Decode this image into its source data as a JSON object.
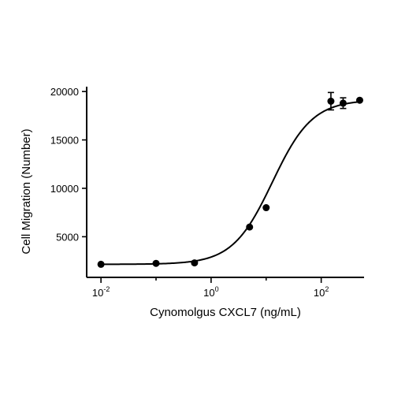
{
  "chart_data": {
    "type": "scatter",
    "xlabel": "Cynomolgus CXCL7 (ng/mL)",
    "ylabel": "Cell Migration (Number)",
    "x_scale": "log",
    "xlim": [
      0.0055,
      600
    ],
    "ylim": [
      800,
      20500
    ],
    "x_ticks": [
      {
        "value": 0.01,
        "base": "10",
        "exp": "-2"
      },
      {
        "value": 1,
        "base": "10",
        "exp": "0"
      },
      {
        "value": 100,
        "base": "10",
        "exp": "2"
      }
    ],
    "y_ticks": [
      {
        "value": 5000,
        "label": "5000"
      },
      {
        "value": 10000,
        "label": "10000"
      },
      {
        "value": 15000,
        "label": "15000"
      },
      {
        "value": 20000,
        "label": "20000"
      }
    ],
    "series": [
      {
        "points": [
          {
            "x": 0.01,
            "y": 2150,
            "err": 0
          },
          {
            "x": 0.1,
            "y": 2250,
            "err": 0
          },
          {
            "x": 0.5,
            "y": 2300,
            "err": 0
          },
          {
            "x": 5,
            "y": 6000,
            "err": 0
          },
          {
            "x": 10,
            "y": 8000,
            "err": 0
          },
          {
            "x": 150,
            "y": 19000,
            "err": 900
          },
          {
            "x": 250,
            "y": 18800,
            "err": 550
          },
          {
            "x": 500,
            "y": 19100,
            "err": 0
          }
        ]
      }
    ],
    "fit": {
      "type": "4PL",
      "bottom": 2150,
      "top": 19150,
      "ec50": 13,
      "hill": 1.2
    },
    "grid": false,
    "legend": "none"
  }
}
